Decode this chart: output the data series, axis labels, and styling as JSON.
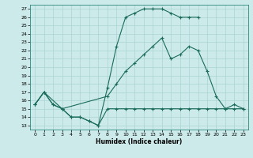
{
  "xlabel": "Humidex (Indice chaleur)",
  "bg_color": "#cceaea",
  "grid_color": "#aad4d4",
  "line_color": "#1a6b5a",
  "xlim": [
    -0.5,
    23.5
  ],
  "ylim": [
    12.5,
    27.5
  ],
  "yticks": [
    13,
    14,
    15,
    16,
    17,
    18,
    19,
    20,
    21,
    22,
    23,
    24,
    25,
    26,
    27
  ],
  "xticks": [
    0,
    1,
    2,
    3,
    4,
    5,
    6,
    7,
    8,
    9,
    10,
    11,
    12,
    13,
    14,
    15,
    16,
    17,
    18,
    19,
    20,
    21,
    22,
    23
  ],
  "line1_x": [
    0,
    1,
    2,
    3,
    4,
    5,
    6,
    7,
    8,
    9,
    10,
    11,
    12,
    13,
    14,
    15,
    16,
    17,
    18,
    19,
    20,
    21,
    22,
    23
  ],
  "line1_y": [
    15.5,
    17.0,
    15.5,
    15.0,
    14.0,
    14.0,
    13.5,
    13.0,
    15.0,
    15.0,
    15.0,
    15.0,
    15.0,
    15.0,
    15.0,
    15.0,
    15.0,
    15.0,
    15.0,
    15.0,
    15.0,
    15.0,
    15.0,
    15.0
  ],
  "line2_x": [
    0,
    1,
    2,
    3,
    4,
    5,
    6,
    7,
    8,
    9,
    10,
    11,
    12,
    13,
    14,
    15,
    16,
    17,
    18
  ],
  "line2_y": [
    15.5,
    17.0,
    15.5,
    15.0,
    14.0,
    14.0,
    13.5,
    13.0,
    17.5,
    22.5,
    26.0,
    26.5,
    27.0,
    27.0,
    27.0,
    26.5,
    26.0,
    26.0,
    26.0
  ],
  "line3_x": [
    0,
    1,
    3,
    8,
    9,
    10,
    11,
    12,
    13,
    14,
    15,
    16,
    17,
    18,
    19,
    20,
    21,
    22,
    23
  ],
  "line3_y": [
    15.5,
    17.0,
    15.0,
    16.5,
    18.0,
    19.5,
    20.5,
    21.5,
    22.5,
    23.5,
    21.0,
    21.5,
    22.5,
    22.0,
    19.5,
    16.5,
    15.0,
    15.5,
    15.0
  ]
}
